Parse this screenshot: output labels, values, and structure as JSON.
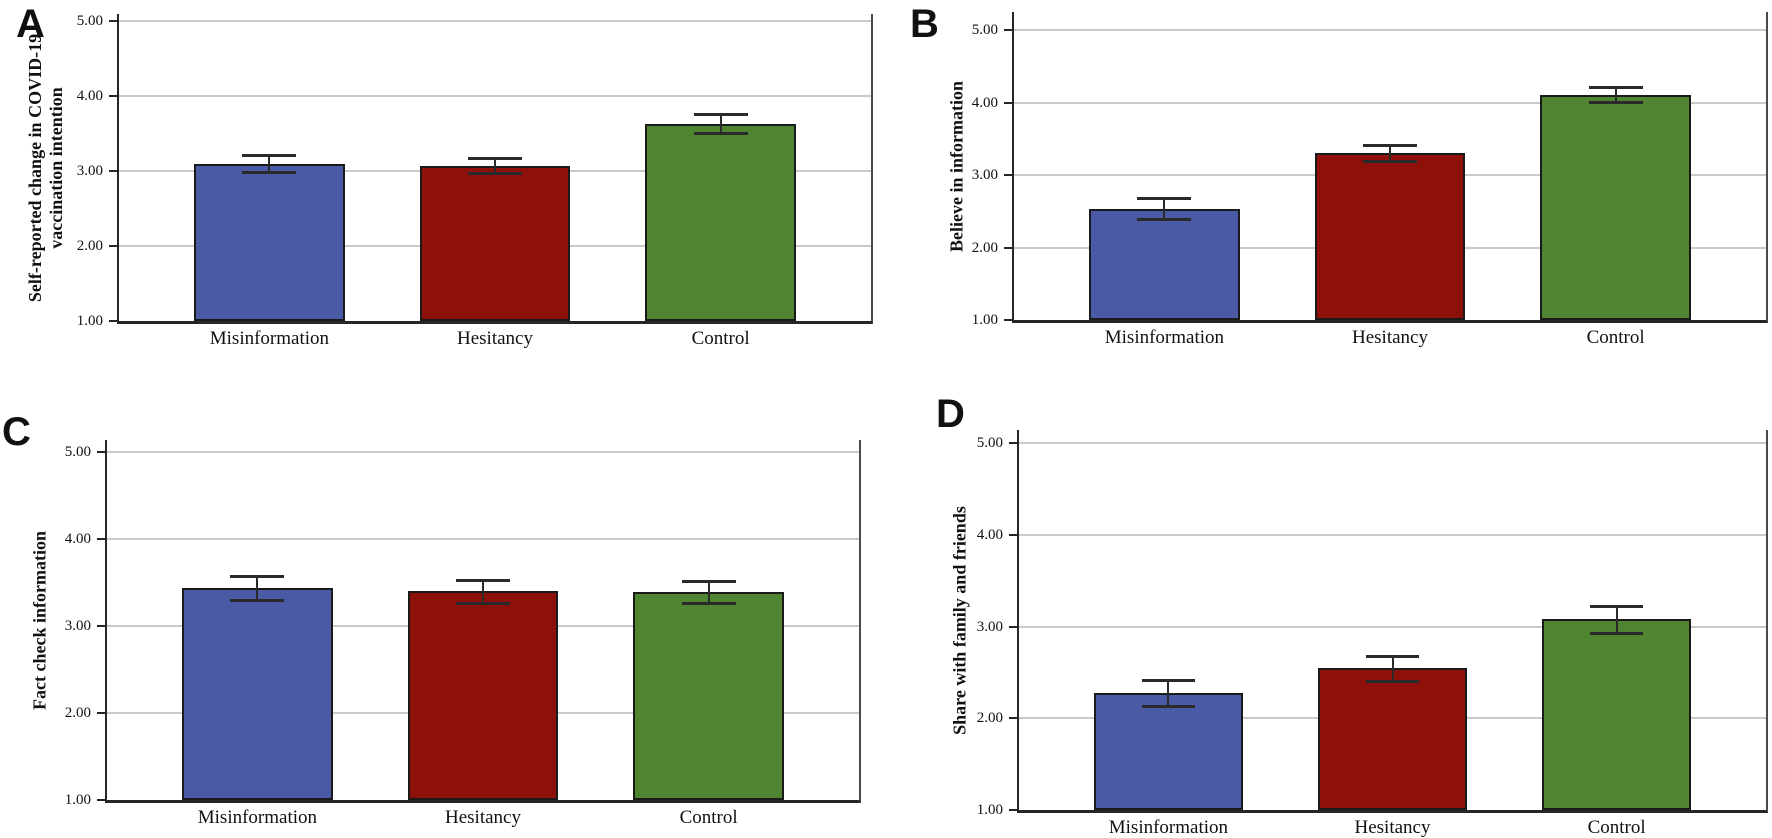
{
  "figure": {
    "y_ticks": [
      "5.00",
      "4.00",
      "3.00",
      "2.00",
      "1.00"
    ],
    "y_tick_values": [
      5,
      4,
      3,
      2,
      1
    ]
  },
  "colors": {
    "misinformation_bar": "#4a5aa5",
    "hesitancy_bar": "#8d100b",
    "control_bar": "#4f8530",
    "bar_border": "#1a1a1a",
    "gridline": "#c9c9c9",
    "axis": "#262626",
    "error_bar": "#2a2a2a"
  },
  "chart_data": [
    {
      "type": "bar",
      "panel_label": "A",
      "ylabel": "Self-reported change in COVID-19 vaccination intention",
      "ylabel_lines": [
        "Self-reported change in COVID-19",
        "vaccination intention"
      ],
      "categories": [
        "Misinformation",
        "Hesitancy",
        "Control"
      ],
      "values": [
        3.1,
        3.07,
        3.63
      ],
      "error_low": [
        2.99,
        2.97,
        3.51
      ],
      "error_high": [
        3.22,
        3.17,
        3.76
      ],
      "ylim": [
        1,
        5
      ],
      "grid": true,
      "legend": "none"
    },
    {
      "type": "bar",
      "panel_label": "B",
      "ylabel": "Believe in information",
      "ylabel_lines": [
        "Believe in information"
      ],
      "categories": [
        "Misinformation",
        "Hesitancy",
        "Control"
      ],
      "values": [
        2.53,
        3.31,
        4.11
      ],
      "error_low": [
        2.39,
        3.2,
        4.01
      ],
      "error_high": [
        2.68,
        3.42,
        4.21
      ],
      "ylim": [
        1,
        5
      ],
      "grid": true,
      "legend": "none"
    },
    {
      "type": "bar",
      "panel_label": "C",
      "ylabel": "Fact check information",
      "ylabel_lines": [
        "Fact check information"
      ],
      "categories": [
        "Misinformation",
        "Hesitancy",
        "Control"
      ],
      "values": [
        3.44,
        3.4,
        3.39
      ],
      "error_low": [
        3.3,
        3.27,
        3.26
      ],
      "error_high": [
        3.58,
        3.53,
        3.52
      ],
      "ylim": [
        1,
        5
      ],
      "grid": true,
      "legend": "none"
    },
    {
      "type": "bar",
      "panel_label": "D",
      "ylabel": "Share with family and friends",
      "ylabel_lines": [
        "Share with family and friends"
      ],
      "categories": [
        "Misinformation",
        "Hesitancy",
        "Control"
      ],
      "values": [
        2.27,
        2.55,
        3.08
      ],
      "error_low": [
        2.13,
        2.41,
        2.93
      ],
      "error_high": [
        2.42,
        2.68,
        3.22
      ],
      "ylim": [
        1,
        5
      ],
      "grid": true,
      "legend": "none"
    }
  ]
}
